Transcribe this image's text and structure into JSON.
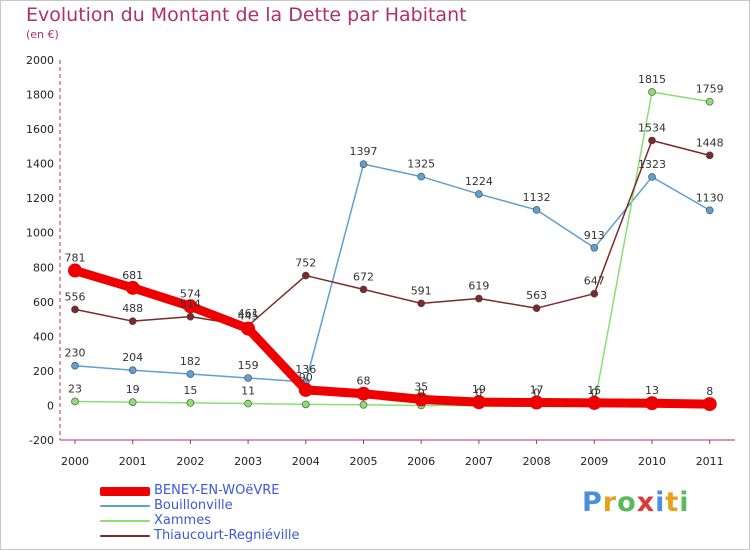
{
  "title": "Evolution du Montant de la Dette par Habitant",
  "subtitle": "(en €)",
  "logo": {
    "letters": [
      "P",
      "r",
      "o",
      "x",
      "i",
      "t",
      "i"
    ],
    "colors": [
      "#4a8fd9",
      "#e8a020",
      "#5cb85c",
      "#d93a3a",
      "#4a8fd9",
      "#e8a020",
      "#5cb85c"
    ]
  },
  "chart_data": {
    "type": "line",
    "x": [
      "2000",
      "2001",
      "2002",
      "2003",
      "2004",
      "2005",
      "2006",
      "2007",
      "2008",
      "2009",
      "2010",
      "2011"
    ],
    "ylim": [
      -200,
      2000
    ],
    "yticks": [
      "-200",
      "0",
      "200",
      "400",
      "600",
      "800",
      "1000",
      "1200",
      "1400",
      "1600",
      "1800",
      "2000"
    ],
    "grid": false,
    "legend": "bottom-left",
    "series": [
      {
        "name": "BENEY-EN-WOëVRE",
        "color": "#ee0000",
        "values": [
          781,
          681,
          574,
          445,
          90,
          68,
          35,
          19,
          17,
          15,
          13,
          8
        ],
        "labels": [
          "781",
          "681",
          "574",
          "445",
          "90",
          "68",
          "35",
          "19",
          "17",
          "15",
          "13",
          "8"
        ]
      },
      {
        "name": "Bouillonville",
        "color": "#5fa0d0",
        "values": [
          230,
          204,
          182,
          159,
          136,
          1397,
          1325,
          1224,
          1132,
          913,
          1323,
          1130
        ],
        "labels": [
          "230",
          "204",
          "182",
          "159",
          "136",
          "1397",
          "1325",
          "1224",
          "1132",
          "913",
          "1323",
          "1130"
        ]
      },
      {
        "name": "Xammes",
        "color": "#88e070",
        "values": [
          23,
          19,
          15,
          11,
          6,
          4,
          0,
          0,
          0,
          0,
          1815,
          1759
        ],
        "labels": [
          "23",
          "19",
          "15",
          "11",
          "",
          "",
          "0",
          "0",
          "0",
          "0",
          "1815",
          "1759"
        ]
      },
      {
        "name": "Thiaucourt-Regniéville",
        "color": "#7a2a2a",
        "values": [
          556,
          488,
          514,
          461,
          752,
          672,
          591,
          619,
          563,
          647,
          1534,
          1448
        ],
        "labels": [
          "556",
          "488",
          "514",
          "461",
          "752",
          "672",
          "591",
          "619",
          "563",
          "647",
          "1534",
          "1448"
        ]
      }
    ]
  }
}
